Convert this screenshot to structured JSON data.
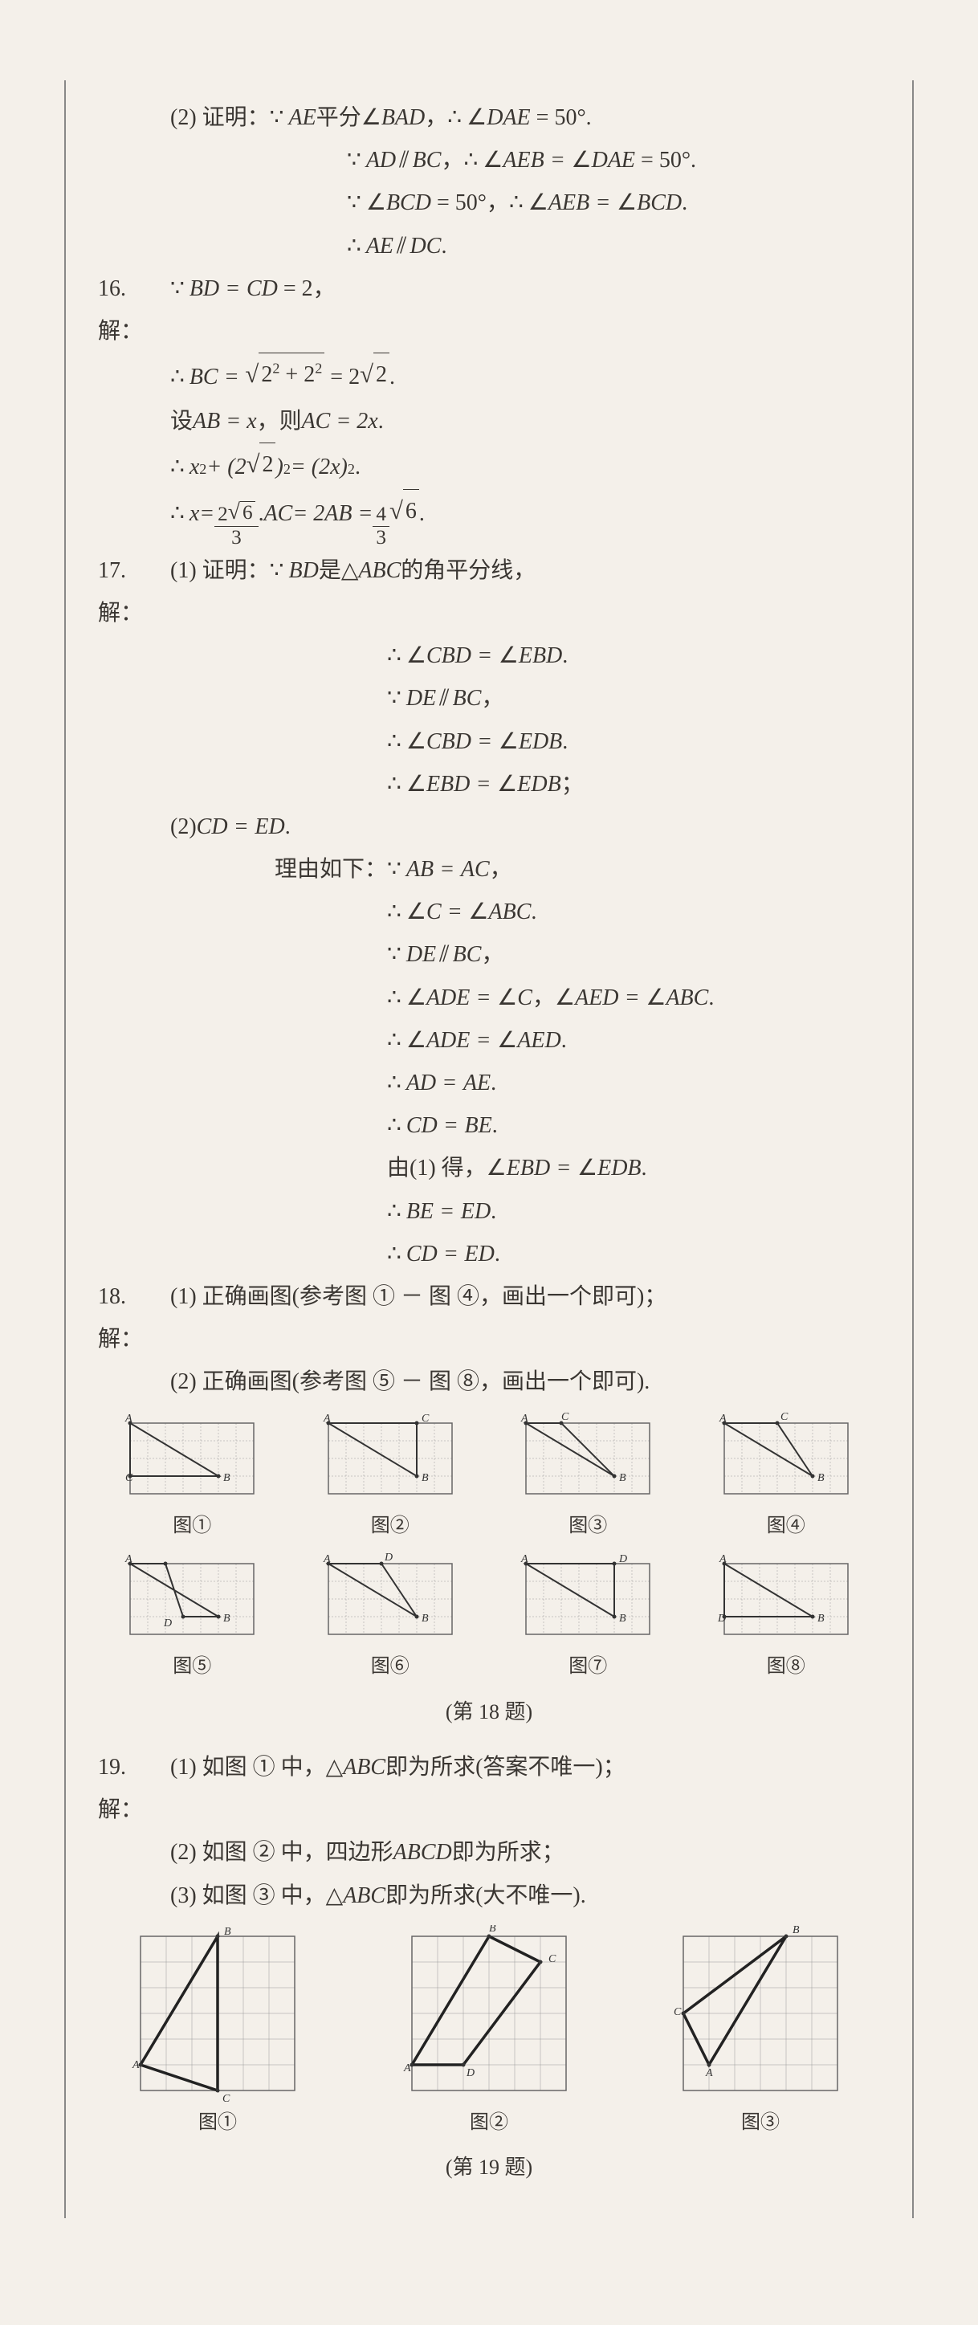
{
  "q15": {
    "part": "(2) 证明：",
    "l1a": "AE",
    "l1b": "平分 ",
    "l1c": "BAD",
    "l1d": "DAE",
    "l1e": "= 50°.",
    "l2a": "AD",
    "l2b": "BC",
    "l2c": "AEB",
    "l2d": "DAE",
    "l2e": "= 50°.",
    "l3a": "BCD",
    "l3b": "= 50°，",
    "l3c": "AEB",
    "l3d": "BCD",
    "l4a": "AE",
    "l4b": "DC"
  },
  "q16": {
    "num": "16. 解：",
    "l1a": "BD",
    "l1b": "CD",
    "l1c": "= 2，",
    "l2a": "BC",
    "l2rad": "2",
    "l2rad2": "2",
    "l2eq": "= 2",
    "l2r2": "2",
    "l3": "设 ",
    "l3a": "AB",
    "l3b": "= x",
    "l3c": "，则 ",
    "l3d": "AC",
    "l3e": "= 2x",
    "l4a": "x",
    "l4b": " + (2",
    "l4c": "2",
    "l4d": ")",
    "l4e": " = (2x)",
    "l5a": "x",
    "l5b": " = ",
    "l5n": "2",
    "l5r": "6",
    "l5d": "3",
    "l5c": ". ",
    "l5ac": "AC",
    "l5e": " = 2AB = ",
    "l5n2": "4",
    "l5d2": "3",
    "l5r2": "6"
  },
  "q17": {
    "num": "17. 解：",
    "p1": "(1) 证明：",
    "l1a": "BD",
    "l1b": " 是 ",
    "l1c": "ABC",
    "l1d": " 的角平分线，",
    "l2a": "CBD",
    "l2b": "EBD",
    "l3a": "DE",
    "l3b": "BC",
    "l4a": "CBD",
    "l4b": "EDB",
    "l5a": "EBD",
    "l5b": "EDB",
    "p2": "(2) ",
    "p2a": "CD",
    "p2b": "ED",
    "reason": "理由如下：",
    "r1a": "AB",
    "r1b": "AC",
    "r2a": "C",
    "r2b": "ABC",
    "r3a": "DE",
    "r3b": "BC",
    "r4a": "ADE",
    "r4b": "C",
    "r4c": "AED",
    "r4d": "ABC",
    "r5a": "ADE",
    "r5b": "AED",
    "r6a": "AD",
    "r6b": "AE",
    "r7a": "CD",
    "r7b": "BE",
    "r8": "由(1) 得，",
    "r8a": "EBD",
    "r8b": "EDB",
    "r9a": "BE",
    "r9b": "ED",
    "r10a": "CD",
    "r10b": "ED"
  },
  "q18": {
    "num": "18. 解：",
    "p1": "(1) 正确画图(参考图 ① － 图 ④，画出一个即可)；",
    "p2": "(2) 正确画图(参考图 ⑤ － 图 ⑧，画出一个即可).",
    "labels": [
      "图①",
      "图②",
      "图③",
      "图④",
      "图⑤",
      "图⑥",
      "图⑦",
      "图⑧"
    ],
    "caption": "(第 18 题)",
    "grid": {
      "cols": 7,
      "rows": 4,
      "cell": 22
    },
    "figs": [
      {
        "pts": [
          [
            0,
            0
          ],
          [
            5,
            3
          ],
          [
            0,
            3
          ]
        ],
        "closed": true,
        "labels": [
          [
            "A",
            0,
            0,
            -6,
            -2
          ],
          [
            "B",
            5,
            3,
            6,
            6
          ],
          [
            "C",
            0,
            3,
            -6,
            6
          ]
        ]
      },
      {
        "pts": [
          [
            0,
            0
          ],
          [
            5,
            3
          ],
          [
            5,
            0
          ]
        ],
        "closed": true,
        "labels": [
          [
            "A",
            0,
            0,
            -6,
            -2
          ],
          [
            "B",
            5,
            3,
            6,
            6
          ],
          [
            "C",
            5,
            0,
            6,
            -2
          ]
        ]
      },
      {
        "pts": [
          [
            0,
            0
          ],
          [
            5,
            3
          ],
          [
            2,
            0
          ]
        ],
        "closed": true,
        "labels": [
          [
            "A",
            0,
            0,
            -6,
            -2
          ],
          [
            "B",
            5,
            3,
            6,
            6
          ],
          [
            "C",
            2,
            0,
            0,
            -4
          ]
        ]
      },
      {
        "pts": [
          [
            0,
            0
          ],
          [
            5,
            3
          ],
          [
            3,
            0
          ]
        ],
        "closed": true,
        "labels": [
          [
            "A",
            0,
            0,
            -6,
            -2
          ],
          [
            "B",
            5,
            3,
            6,
            6
          ],
          [
            "C",
            3,
            0,
            4,
            -4
          ]
        ]
      },
      {
        "pts": [
          [
            0,
            0
          ],
          [
            5,
            3
          ],
          [
            3,
            3
          ],
          [
            2,
            0
          ]
        ],
        "closed": true,
        "extra": [
          [
            0,
            0
          ],
          [
            2,
            0
          ]
        ],
        "labels": [
          [
            "A",
            0,
            0,
            -6,
            -2
          ],
          [
            "B",
            5,
            3,
            6,
            6
          ],
          [
            "D",
            2,
            3,
            -2,
            12
          ]
        ]
      },
      {
        "pts": [
          [
            0,
            0
          ],
          [
            5,
            3
          ],
          [
            3,
            0
          ]
        ],
        "closed": true,
        "extra": [
          [
            0,
            0
          ],
          [
            3,
            0
          ]
        ],
        "labels": [
          [
            "A",
            0,
            0,
            -6,
            -2
          ],
          [
            "B",
            5,
            3,
            6,
            6
          ],
          [
            "D",
            3,
            0,
            4,
            -4
          ]
        ]
      },
      {
        "pts": [
          [
            0,
            0
          ],
          [
            5,
            3
          ],
          [
            5,
            0
          ]
        ],
        "closed": true,
        "extra": [
          [
            0,
            0
          ],
          [
            5,
            0
          ]
        ],
        "labels": [
          [
            "A",
            0,
            0,
            -6,
            -2
          ],
          [
            "B",
            5,
            3,
            6,
            6
          ],
          [
            "D",
            5,
            0,
            6,
            -2
          ]
        ]
      },
      {
        "pts": [
          [
            0,
            0
          ],
          [
            5,
            3
          ],
          [
            0,
            3
          ]
        ],
        "closed": true,
        "extra": [
          [
            0,
            0
          ],
          [
            0,
            3
          ]
        ],
        "labels": [
          [
            "A",
            0,
            0,
            -6,
            -2
          ],
          [
            "B",
            5,
            3,
            6,
            6
          ],
          [
            "D",
            0,
            3,
            -8,
            6
          ]
        ]
      }
    ]
  },
  "q19": {
    "num": "19. 解：",
    "p1": "(1) 如图 ① 中，",
    "p1a": "ABC",
    "p1b": " 即为所求(答案不唯一)；",
    "p2": "(2) 如图 ② 中，四边形 ",
    "p2a": "ABCD",
    "p2b": " 即为所求；",
    "p3": "(3) 如图 ③ 中，",
    "p3a": "ABC",
    "p3b": " 即为所求(大不唯一).",
    "labels": [
      "图①",
      "图②",
      "图③"
    ],
    "caption": "(第 19 题)",
    "grid": {
      "cols": 6,
      "rows": 6,
      "cell": 32
    },
    "figs": [
      {
        "pts": [
          [
            0,
            5
          ],
          [
            3,
            0
          ],
          [
            3,
            6
          ]
        ],
        "labels": [
          [
            "A",
            0,
            5,
            -10,
            4
          ],
          [
            "B",
            3,
            0,
            8,
            -2
          ],
          [
            "C",
            3,
            6,
            6,
            14
          ]
        ]
      },
      {
        "pts": [
          [
            0,
            5
          ],
          [
            3,
            0
          ],
          [
            5,
            1
          ],
          [
            2,
            5
          ]
        ],
        "labels": [
          [
            "A",
            0,
            5,
            -10,
            8
          ],
          [
            "B",
            3,
            0,
            0,
            -6
          ],
          [
            "C",
            5,
            1,
            10,
            0
          ],
          [
            "D",
            2,
            5,
            4,
            14
          ]
        ]
      },
      {
        "pts": [
          [
            1,
            5
          ],
          [
            4,
            0
          ],
          [
            0,
            3
          ]
        ],
        "labels": [
          [
            "A",
            1,
            5,
            -4,
            14
          ],
          [
            "B",
            4,
            0,
            8,
            -4
          ],
          [
            "C",
            0,
            3,
            -12,
            2
          ]
        ]
      }
    ]
  }
}
